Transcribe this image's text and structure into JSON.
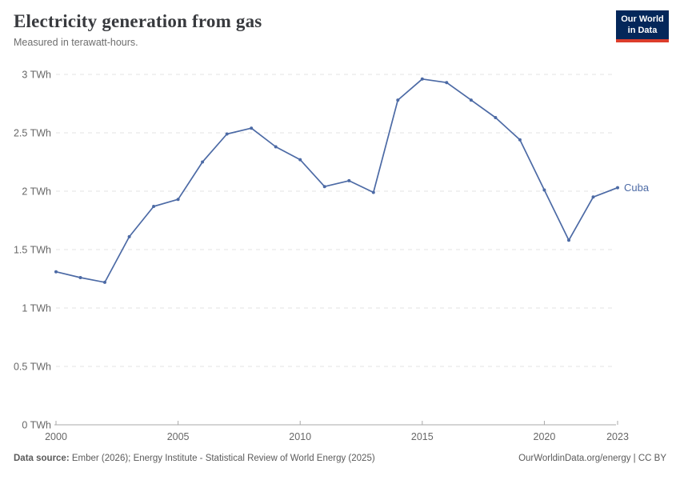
{
  "header": {
    "title": "Electricity generation from gas",
    "subtitle": "Measured in terawatt-hours."
  },
  "logo": {
    "line1": "Our World",
    "line2": "in Data",
    "bg_color": "#04275a",
    "accent_color": "#dc3d2b"
  },
  "footer": {
    "source_label": "Data source:",
    "source_text": " Ember (2026); Energy Institute - Statistical Review of World Energy (2025)",
    "right_text": "OurWorldinData.org/energy | CC BY"
  },
  "chart_data": {
    "type": "line",
    "title": "Electricity generation from gas",
    "subtitle": "Measured in terawatt-hours.",
    "unit_short": "TWh",
    "x": [
      2000,
      2001,
      2002,
      2003,
      2004,
      2005,
      2006,
      2007,
      2008,
      2009,
      2010,
      2011,
      2012,
      2013,
      2014,
      2015,
      2016,
      2017,
      2018,
      2019,
      2020,
      2021,
      2022,
      2023
    ],
    "series": [
      {
        "name": "Cuba",
        "color": "#4c6aa5",
        "values": [
          1.31,
          1.26,
          1.22,
          1.61,
          1.87,
          1.93,
          2.25,
          2.49,
          2.54,
          2.38,
          2.27,
          2.04,
          2.09,
          1.99,
          2.78,
          2.96,
          2.93,
          2.78,
          2.63,
          2.44,
          2.01,
          1.58,
          1.95,
          2.03
        ]
      }
    ],
    "xlim": [
      2000,
      2023
    ],
    "ylim": [
      0,
      3
    ],
    "xticks": [
      2000,
      2005,
      2010,
      2015,
      2020,
      2023
    ],
    "yticks": [
      0,
      0.5,
      1,
      1.5,
      2,
      2.5,
      3
    ],
    "grid": true,
    "gridline_style": "dashed",
    "legend_position": "end-of-line-label",
    "xlabel": "",
    "ylabel": ""
  }
}
